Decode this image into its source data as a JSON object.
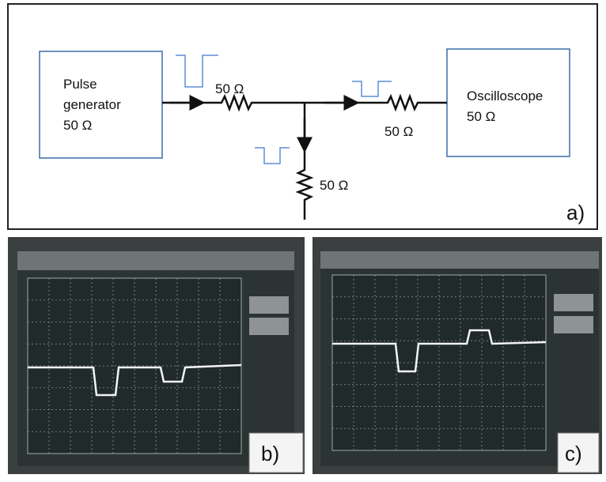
{
  "diagram": {
    "label": "a)",
    "source": {
      "lines": [
        "Pulse",
        "generator",
        "50 Ω"
      ]
    },
    "scope": {
      "lines": [
        "Oscilloscope",
        "50 Ω"
      ]
    },
    "resistors": [
      "50 Ω",
      "50 Ω",
      "50 Ω"
    ]
  },
  "photos": [
    {
      "label": "b)"
    },
    {
      "label": "c)"
    }
  ]
}
